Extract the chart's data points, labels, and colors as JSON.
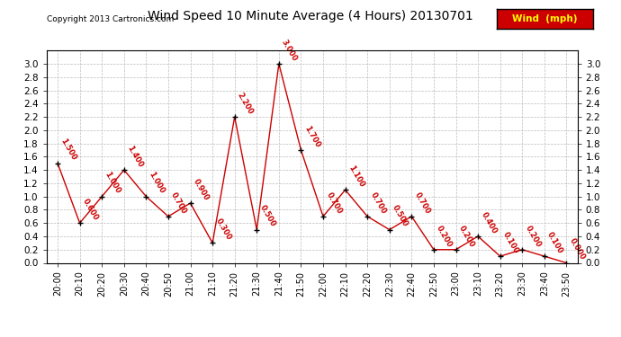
{
  "title": "Wind Speed 10 Minute Average (4 Hours) 20130701",
  "copyright": "Copyright 2013 Cartronics.com",
  "legend_label": "Wind  (mph)",
  "x_labels": [
    "20:00",
    "20:10",
    "20:20",
    "20:30",
    "20:40",
    "20:50",
    "21:00",
    "21:10",
    "21:20",
    "21:30",
    "21:40",
    "21:50",
    "22:00",
    "22:10",
    "22:20",
    "22:30",
    "22:40",
    "22:50",
    "23:00",
    "23:10",
    "23:20",
    "23:30",
    "23:40",
    "23:50"
  ],
  "y_values": [
    1.5,
    0.6,
    1.0,
    1.4,
    1.0,
    0.7,
    0.9,
    0.3,
    2.2,
    0.5,
    3.0,
    1.7,
    0.7,
    1.1,
    0.7,
    0.5,
    0.7,
    0.2,
    0.2,
    0.4,
    0.1,
    0.2,
    0.1,
    0.0
  ],
  "y_labels": [
    "1.500",
    "0.600",
    "1.000",
    "1.400",
    "1.000",
    "0.700",
    "0.900",
    "0.300",
    "2.200",
    "0.500",
    "3.000",
    "1.700",
    "0.700",
    "1.100",
    "0.700",
    "0.500",
    "0.700",
    "0.200",
    "0.200",
    "0.400",
    "0.100",
    "0.200",
    "0.100",
    "0.000"
  ],
  "last_zero_label": "0.000",
  "ylim": [
    0.0,
    3.2
  ],
  "yticks": [
    0.0,
    0.2,
    0.4,
    0.6,
    0.8,
    1.0,
    1.2,
    1.4,
    1.6,
    1.8,
    2.0,
    2.2,
    2.4,
    2.6,
    2.8,
    3.0
  ],
  "line_color": "#cc0000",
  "marker_color": "#000000",
  "bg_color": "#ffffff",
  "grid_color": "#bbbbbb",
  "label_color": "#cc0000",
  "title_color": "#000000",
  "legend_bg": "#cc0000",
  "legend_text_color": "#ffff00"
}
